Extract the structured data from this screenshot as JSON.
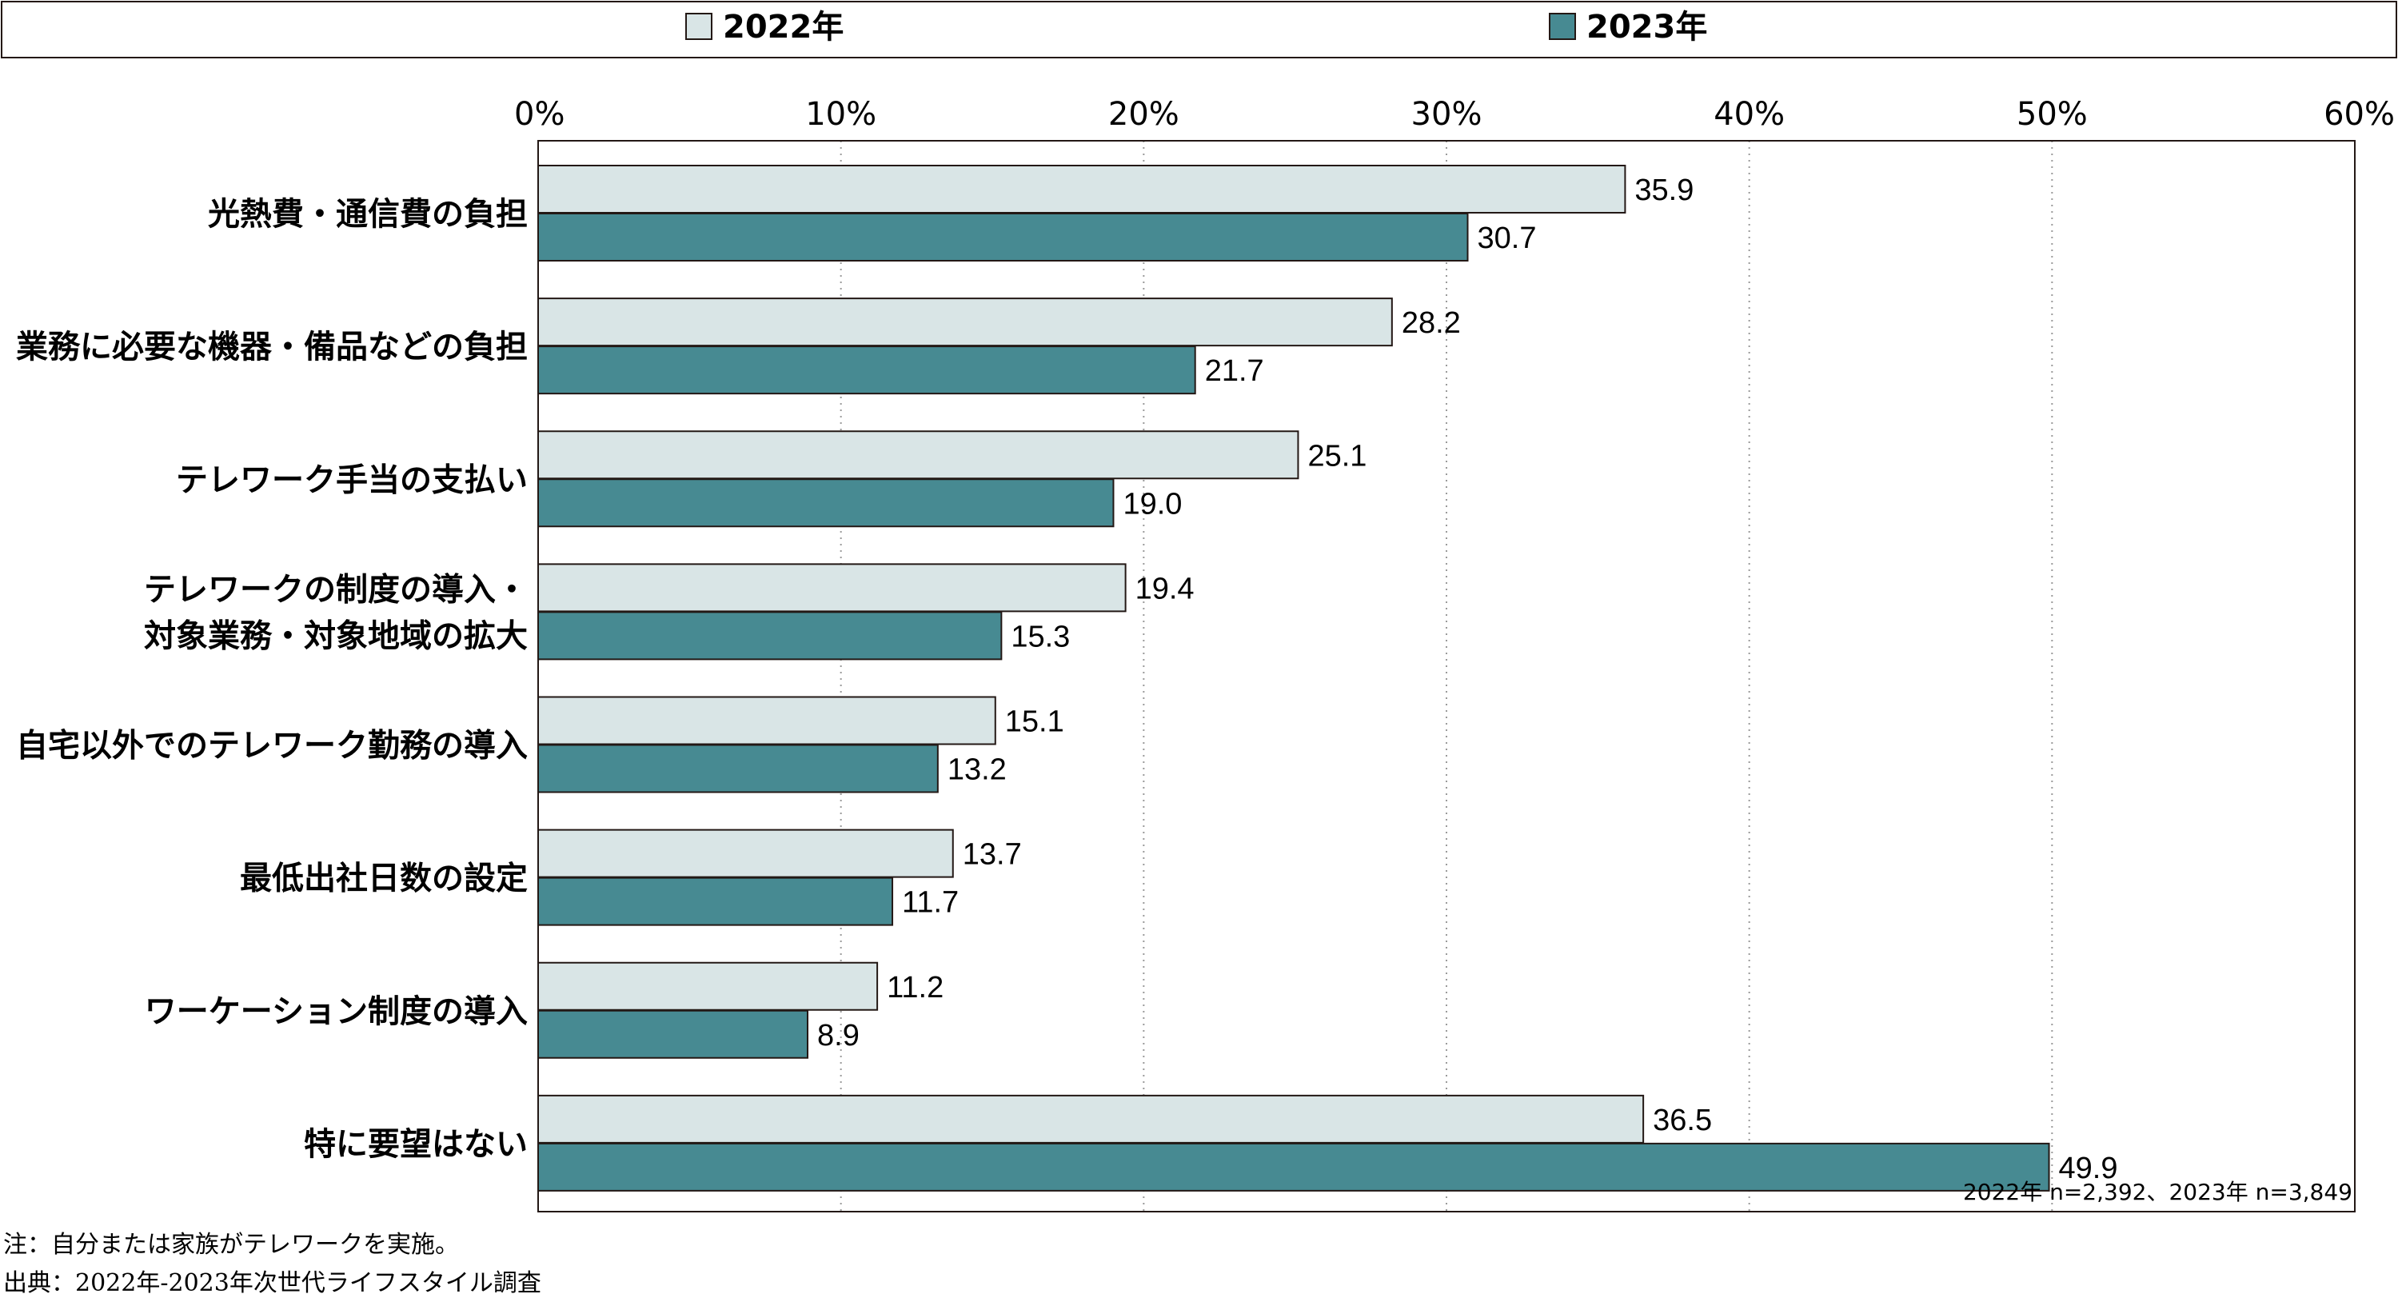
{
  "legend": {
    "items": [
      {
        "label": "2022年",
        "color": "#d9e5e6"
      },
      {
        "label": "2023年",
        "color": "#478a92"
      }
    ]
  },
  "sample_note": "2022年 n=2,392、2023年 n=3,849",
  "footnotes": {
    "note": "注：自分または家族がテレワークを実施。",
    "source": "出典：2022年-2023年次世代ライフスタイル調査"
  },
  "chart_data": {
    "type": "bar",
    "orientation": "horizontal",
    "categories": [
      [
        "光熱費・通信費の負担"
      ],
      [
        "業務に必要な機器・備品などの負担"
      ],
      [
        "テレワーク手当の支払い"
      ],
      [
        "テレワークの制度の導入・",
        "対象業務・対象地域の拡大"
      ],
      [
        "自宅以外でのテレワーク勤務の導入"
      ],
      [
        "最低出社日数の設定"
      ],
      [
        "ワーケーション制度の導入"
      ],
      [
        "特に要望はない"
      ]
    ],
    "series": [
      {
        "name": "2022年",
        "color": "#d9e5e6",
        "values": [
          35.9,
          28.2,
          25.1,
          19.4,
          15.1,
          13.7,
          11.2,
          36.5
        ],
        "labels": [
          "35.9",
          "28.2",
          "25.1",
          "19.4",
          "15.1",
          "13.7",
          "11.2",
          "36.5"
        ]
      },
      {
        "name": "2023年",
        "color": "#478a92",
        "values": [
          30.7,
          21.7,
          19.0,
          15.3,
          13.2,
          11.7,
          8.9,
          49.9
        ],
        "labels": [
          "30.7",
          "21.7",
          "19.0",
          "15.3",
          "13.2",
          "11.7",
          "8.9",
          "49.9"
        ]
      }
    ],
    "xlim": [
      0,
      60
    ],
    "ticks": [
      0,
      10,
      20,
      30,
      40,
      50,
      60
    ],
    "tick_labels": [
      "0%",
      "10%",
      "20%",
      "30%",
      "40%",
      "50%",
      "60%"
    ],
    "grid": true,
    "legend_position": "top"
  }
}
